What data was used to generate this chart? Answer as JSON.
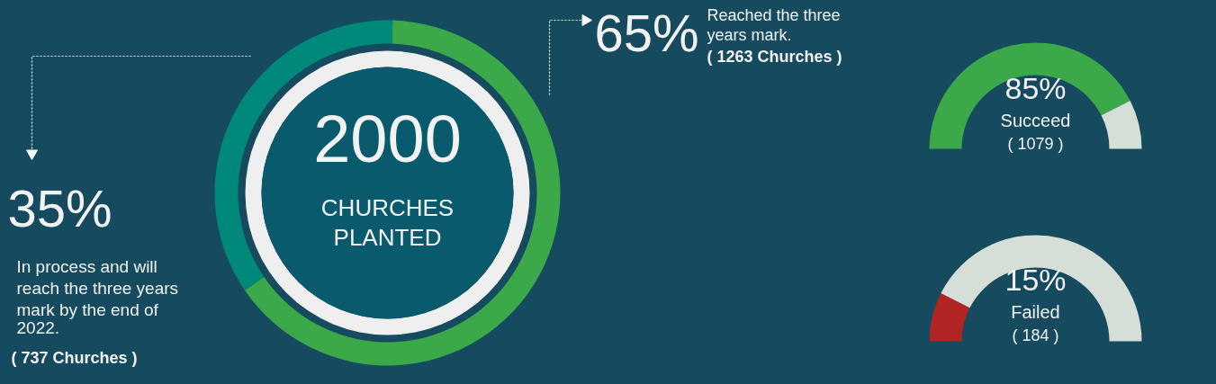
{
  "chart_data": [
    {
      "type": "donut",
      "title": "2000",
      "subtitle": "CHURCHES PLANTED",
      "categories": [
        null,
        null
      ],
      "values": [
        65,
        35
      ],
      "colors": [
        "#3ba84a",
        "#00897b"
      ],
      "value_labels": [
        "65%",
        "35%"
      ],
      "annotations": [
        "Reached the three years mark.",
        "( 1263 Churches )",
        "In process and will reach the three years mark by the end of 2022.",
        "( 737 Churches )"
      ]
    },
    {
      "type": "donut",
      "categories": [
        null,
        null
      ],
      "values": [
        85,
        15
      ],
      "colors": [
        "#3ba84a",
        "#d6ded8"
      ],
      "annotations": [
        "85%",
        "Succeed",
        "( 1079 )"
      ]
    },
    {
      "type": "donut",
      "categories": [
        null,
        null
      ],
      "values": [
        15,
        85
      ],
      "colors": [
        "#b22424",
        "#d6ded8"
      ],
      "annotations": [
        "15%",
        "Failed",
        "( 184 )"
      ]
    }
  ]
}
